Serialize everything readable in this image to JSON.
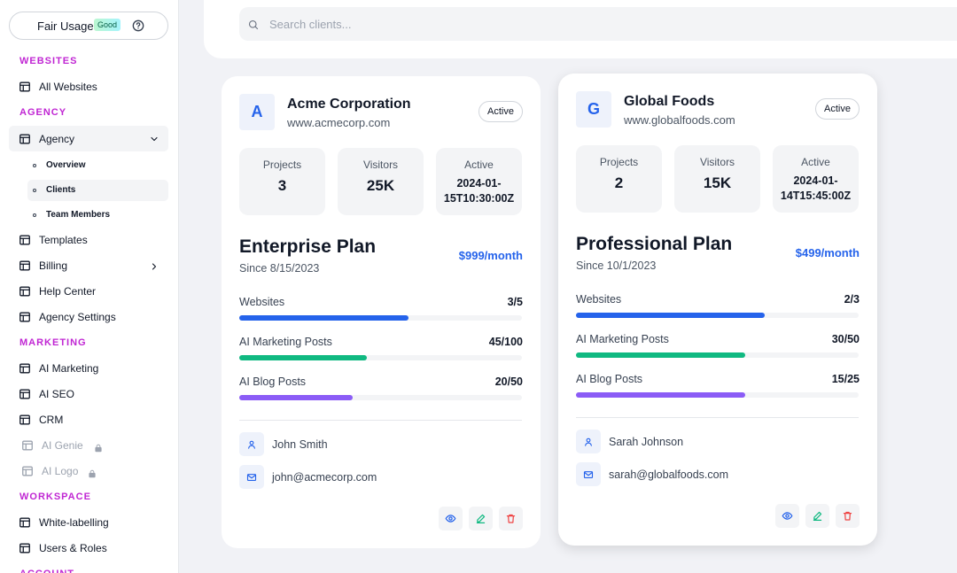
{
  "sidebar": {
    "fair_usage": "Fair Usage",
    "badge": "Good",
    "sections": [
      {
        "heading": "WEBSITES",
        "items": [
          {
            "label": "All Websites"
          }
        ]
      },
      {
        "heading": "AGENCY",
        "items": [
          {
            "label": "Agency",
            "expanded": true,
            "children": [
              {
                "label": "Overview"
              },
              {
                "label": "Clients",
                "selected": true
              },
              {
                "label": "Team Members"
              }
            ]
          },
          {
            "label": "Templates"
          },
          {
            "label": "Billing",
            "submenu": true
          },
          {
            "label": "Help Center"
          },
          {
            "label": "Agency Settings"
          }
        ]
      },
      {
        "heading": "MARKETING",
        "items": [
          {
            "label": "AI Marketing"
          },
          {
            "label": "AI SEO"
          },
          {
            "label": "CRM"
          },
          {
            "label": "AI Genie",
            "locked": true
          },
          {
            "label": "AI Logo",
            "locked": true
          }
        ]
      },
      {
        "heading": "WORKSPACE",
        "items": [
          {
            "label": "White-labelling"
          },
          {
            "label": "Users & Roles"
          }
        ]
      },
      {
        "heading": "ACCOUNT",
        "items": []
      }
    ]
  },
  "search": {
    "placeholder": "Search clients..."
  },
  "bar_colors": [
    "#2563eb",
    "#10b981",
    "#8b5cf6"
  ],
  "clients": [
    {
      "initial": "A",
      "name": "Acme Corporation",
      "website": "www.acmecorp.com",
      "status": "Active",
      "stats": [
        {
          "label": "Projects",
          "value": 3
        },
        {
          "label": "Visitors",
          "value": "25K"
        },
        {
          "label": "Active",
          "value": "2024-01-15T10:30:00Z"
        }
      ],
      "plan": "Enterprise Plan",
      "since": "Since 8/15/2023",
      "price": "$999/month",
      "usage": [
        {
          "label": "Websites",
          "value": "3/5"
        },
        {
          "label": "AI Marketing Posts",
          "value": "45/100"
        },
        {
          "label": "AI Blog Posts",
          "value": "20/50"
        }
      ],
      "contact": {
        "name": "John Smith",
        "email": "john@acmecorp.com"
      }
    },
    {
      "initial": "G",
      "name": "Global Foods",
      "website": "www.globalfoods.com",
      "status": "Active",
      "stats": [
        {
          "label": "Projects",
          "value": 2
        },
        {
          "label": "Visitors",
          "value": "15K"
        },
        {
          "label": "Active",
          "value": "2024-01-14T15:45:00Z"
        }
      ],
      "plan": "Professional Plan",
      "since": "Since 10/1/2023",
      "price": "$499/month",
      "usage": [
        {
          "label": "Websites",
          "value": "2/3"
        },
        {
          "label": "AI Marketing Posts",
          "value": "30/50"
        },
        {
          "label": "AI Blog Posts",
          "value": "15/25"
        }
      ],
      "contact": {
        "name": "Sarah Johnson",
        "email": "sarah@globalfoods.com"
      }
    }
  ]
}
